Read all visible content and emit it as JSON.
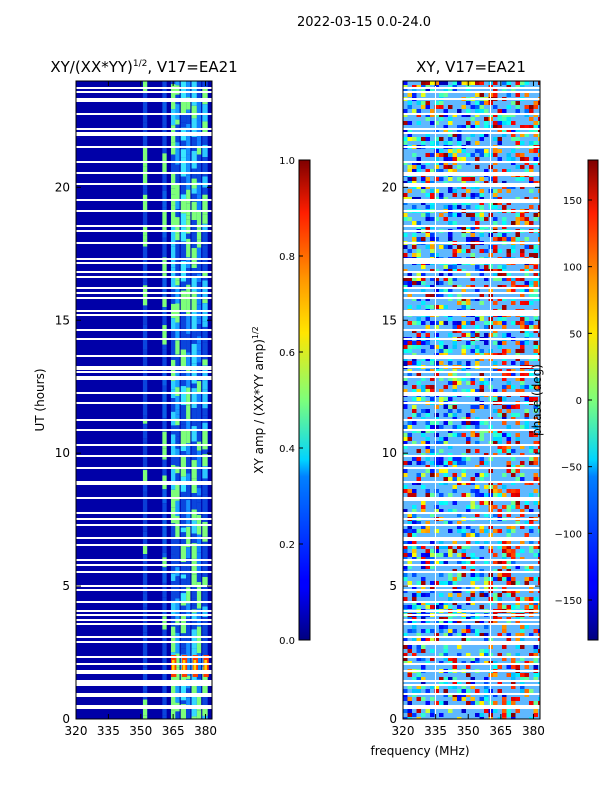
{
  "chart_data": {
    "suptitle": "2022-03-15 0.0-24.0",
    "xlabel": "frequency (MHz)",
    "panels": [
      {
        "type": "heatmap",
        "name": "amplitude-ratio",
        "title": "XY/(XX*YY)^1/2, V17=EA21",
        "title_main": "XY/(XX*YY)",
        "title_sup": "1/2",
        "title_rest": ", V17=EA21",
        "ylabel": "UT (hours)",
        "xlim": [
          320,
          383
        ],
        "ylim": [
          0,
          24
        ],
        "xticks": [
          "320",
          "335",
          "350",
          "365",
          "380"
        ],
        "yticks": [
          "0",
          "5",
          "10",
          "15",
          "20"
        ],
        "colormap": "jet",
        "colorbar": {
          "label": "XY amp / (XX*YY amp)^1/2",
          "label_main": "XY amp / (XX*YY amp)",
          "label_sup": "1/2",
          "range": [
            0.0,
            1.0
          ],
          "ticks": [
            "0.0",
            "0.2",
            "0.4",
            "0.6",
            "0.8",
            "1.0"
          ]
        }
      },
      {
        "type": "heatmap",
        "name": "phase",
        "title": "XY, V17=EA21",
        "ylabel": "",
        "xlim": [
          320,
          383
        ],
        "ylim": [
          0,
          24
        ],
        "xticks": [
          "320",
          "335",
          "350",
          "365",
          "380"
        ],
        "yticks": [
          "0",
          "5",
          "10",
          "15",
          "20"
        ],
        "colormap": "jet",
        "colorbar": {
          "label": "phase (deg)",
          "range": [
            -180,
            180
          ],
          "ticks": [
            "−150",
            "−100",
            "−50",
            "0",
            "50",
            "100",
            "150"
          ]
        }
      }
    ]
  }
}
